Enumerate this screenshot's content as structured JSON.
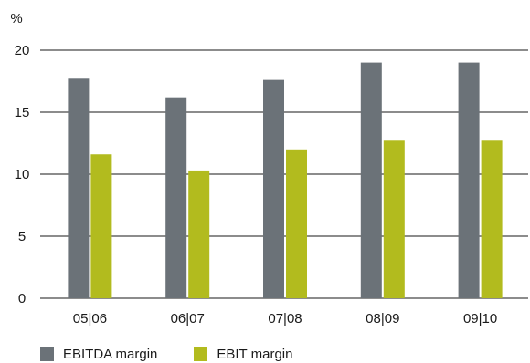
{
  "chart_data": {
    "type": "bar",
    "unit_label": "%",
    "categories": [
      "05|06",
      "06|07",
      "07|08",
      "08|09",
      "09|10"
    ],
    "series": [
      {
        "name": "EBITDA margin",
        "color": "#6b7278",
        "values": [
          17.7,
          16.2,
          17.6,
          19.0,
          19.0
        ]
      },
      {
        "name": "EBIT margin",
        "color": "#b2bb1e",
        "values": [
          11.6,
          10.3,
          12.0,
          12.7,
          12.7
        ]
      }
    ],
    "yticks": [
      0,
      5,
      10,
      15,
      20
    ],
    "ylim": [
      0,
      20
    ],
    "grid": true,
    "legend_position": "bottom-left"
  }
}
